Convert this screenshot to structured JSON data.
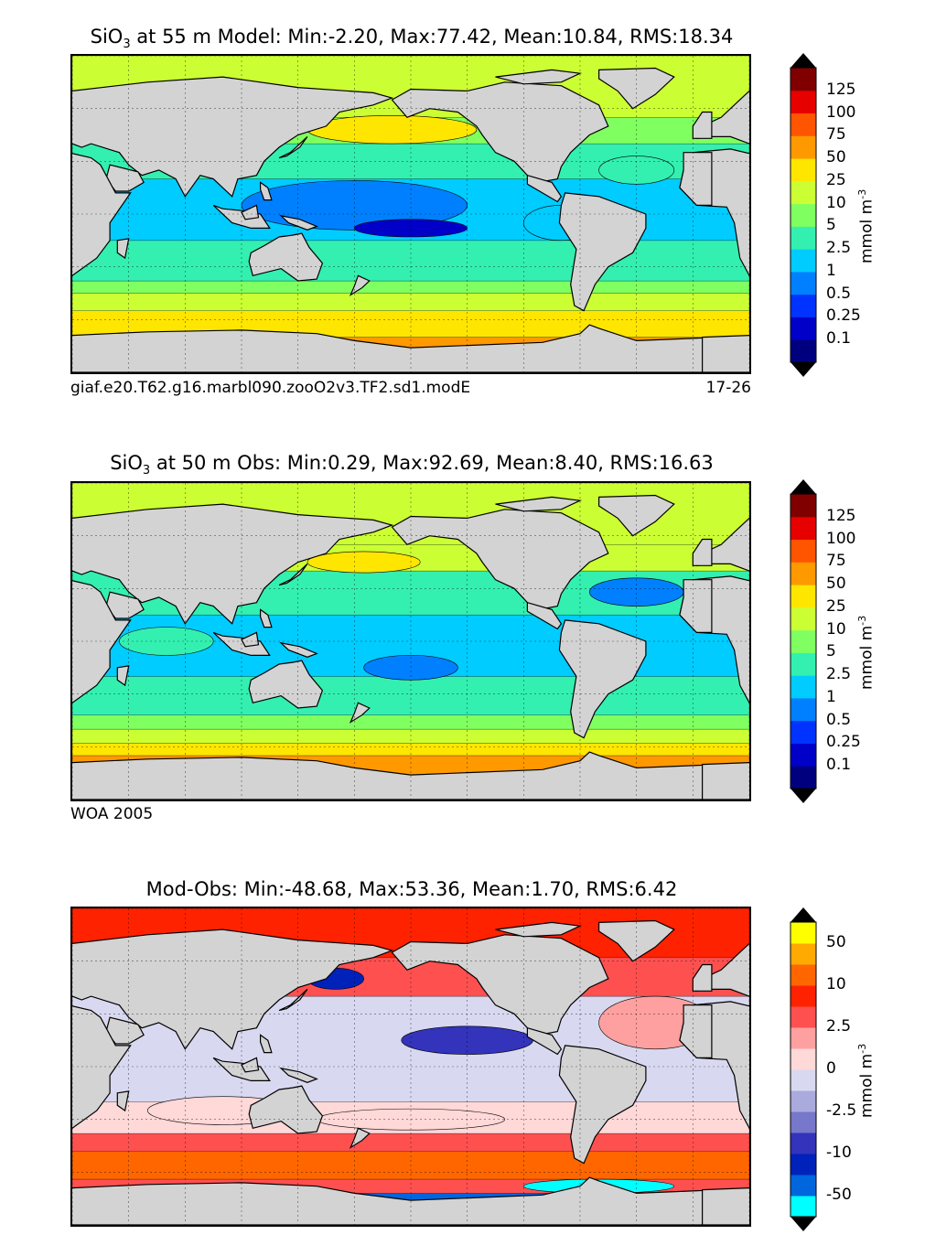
{
  "chart_data": [
    {
      "type": "heatmap",
      "title": "SiO3 at 55 m Model: Min:-2.20, Max:77.42, Mean:10.84, RMS:18.34",
      "title_parts": {
        "pre": "SiO",
        "sub": "3",
        "post": " at 55 m Model: Min:-2.20, Max:77.42, Mean:10.84, RMS:18.34"
      },
      "stats": {
        "depth_m": 55,
        "source": "Model",
        "min": -2.2,
        "max": 77.42,
        "mean": 10.84,
        "rms": 18.34
      },
      "caption_left": "giaf.e20.T62.g16.marbl090.zooO2v3.TF2.sd1.modE",
      "caption_right": "17-26",
      "colorbar": {
        "units": "mmol m",
        "units_exp": "-3",
        "levels": [
          "0.1",
          "0.25",
          "0.5",
          "1",
          "2.5",
          "5",
          "10",
          "25",
          "50",
          "75",
          "100",
          "125"
        ],
        "colors": [
          "#00007f",
          "#0000c8",
          "#0033ff",
          "#0080ff",
          "#00ccff",
          "#33f0b0",
          "#80ff60",
          "#ccff33",
          "#ffe600",
          "#ff9900",
          "#ff5500",
          "#e60000",
          "#800000"
        ],
        "extend": "both"
      },
      "field": {
        "bands": [
          {
            "lat_from": -90,
            "lat_to": -70,
            "level_index": 9
          },
          {
            "lat_from": -70,
            "lat_to": -55,
            "level_index": 8
          },
          {
            "lat_from": -55,
            "lat_to": -45,
            "level_index": 7
          },
          {
            "lat_from": -45,
            "lat_to": -38,
            "level_index": 6
          },
          {
            "lat_from": -38,
            "lat_to": -15,
            "level_index": 5
          },
          {
            "lat_from": -15,
            "lat_to": 20,
            "level_index": 4
          },
          {
            "lat_from": 20,
            "lat_to": 40,
            "level_index": 5
          },
          {
            "lat_from": 40,
            "lat_to": 55,
            "level_index": 6
          },
          {
            "lat_from": 55,
            "lat_to": 90,
            "level_index": 7
          }
        ],
        "blobs": [
          {
            "lon": 170,
            "lat": 5,
            "rlon": 60,
            "rlat": 14,
            "level_index": 3
          },
          {
            "lon": 200,
            "lat": -8,
            "rlon": 30,
            "rlat": 5,
            "level_index": 1
          },
          {
            "lon": 190,
            "lat": 48,
            "rlon": 45,
            "rlat": 8,
            "level_index": 8
          },
          {
            "lon": 130,
            "lat": 48,
            "rlon": 8,
            "rlat": 6,
            "level_index": 9
          },
          {
            "lon": 280,
            "lat": -5,
            "rlon": 20,
            "rlat": 10,
            "level_index": 4
          },
          {
            "lon": 320,
            "lat": 25,
            "rlon": 20,
            "rlat": 8,
            "level_index": 5
          }
        ]
      }
    },
    {
      "type": "heatmap",
      "title": "SiO3 at 50 m Obs: Min:0.29, Max:92.69, Mean:8.40, RMS:16.63",
      "title_parts": {
        "pre": "SiO",
        "sub": "3",
        "post": " at 50 m Obs: Min:0.29, Max:92.69, Mean:8.40, RMS:16.63"
      },
      "stats": {
        "depth_m": 50,
        "source": "Obs",
        "min": 0.29,
        "max": 92.69,
        "mean": 8.4,
        "rms": 16.63
      },
      "caption_left": "WOA 2005",
      "caption_right": "",
      "colorbar": {
        "units": "mmol m",
        "units_exp": "-3",
        "levels": [
          "0.1",
          "0.25",
          "0.5",
          "1",
          "2.5",
          "5",
          "10",
          "25",
          "50",
          "75",
          "100",
          "125"
        ],
        "colors": [
          "#00007f",
          "#0000c8",
          "#0033ff",
          "#0080ff",
          "#00ccff",
          "#33f0b0",
          "#80ff60",
          "#ccff33",
          "#ffe600",
          "#ff9900",
          "#ff5500",
          "#e60000",
          "#800000"
        ],
        "extend": "both"
      },
      "field": {
        "bands": [
          {
            "lat_from": -90,
            "lat_to": -65,
            "level_index": 9
          },
          {
            "lat_from": -65,
            "lat_to": -58,
            "level_index": 8
          },
          {
            "lat_from": -58,
            "lat_to": -50,
            "level_index": 7
          },
          {
            "lat_from": -50,
            "lat_to": -42,
            "level_index": 6
          },
          {
            "lat_from": -42,
            "lat_to": -20,
            "level_index": 5
          },
          {
            "lat_from": -20,
            "lat_to": 15,
            "level_index": 4
          },
          {
            "lat_from": 15,
            "lat_to": 40,
            "level_index": 5
          },
          {
            "lat_from": 40,
            "lat_to": 55,
            "level_index": 7
          },
          {
            "lat_from": 55,
            "lat_to": 90,
            "level_index": 7
          }
        ],
        "blobs": [
          {
            "lon": 200,
            "lat": -15,
            "rlon": 25,
            "rlat": 7,
            "level_index": 3
          },
          {
            "lon": 320,
            "lat": 28,
            "rlon": 25,
            "rlat": 8,
            "level_index": 3
          },
          {
            "lon": 175,
            "lat": 45,
            "rlon": 30,
            "rlat": 6,
            "level_index": 8
          },
          {
            "lon": 70,
            "lat": 0,
            "rlon": 25,
            "rlat": 8,
            "level_index": 5
          }
        ]
      }
    },
    {
      "type": "heatmap",
      "title": "Mod-Obs: Min:-48.68, Max:53.36, Mean:1.70, RMS:6.42",
      "title_parts": {
        "pre": "Mod-Obs: Min:-48.68, Max:53.36, Mean:1.70, RMS:6.42",
        "sub": "",
        "post": ""
      },
      "stats": {
        "source": "Mod-Obs",
        "min": -48.68,
        "max": 53.36,
        "mean": 1.7,
        "rms": 6.42
      },
      "caption_left": "",
      "caption_right": "",
      "colorbar": {
        "units": "mmol m",
        "units_exp": "-3",
        "levels": [
          "-50",
          "",
          "-10",
          "",
          "-2.5",
          "",
          "0",
          "",
          "2.5",
          "",
          "10",
          "",
          "50"
        ],
        "colors": [
          "#00ffff",
          "#0066dd",
          "#0022bb",
          "#3333bb",
          "#7777cc",
          "#aaaadd",
          "#d8d8f0",
          "#ffd8d8",
          "#ffa0a0",
          "#ff5050",
          "#ff2200",
          "#ff6600",
          "#ffaa00",
          "#ffff00"
        ],
        "extend": "both"
      },
      "field": {
        "bands": [
          {
            "lat_from": -90,
            "lat_to": -72,
            "level_index": 1
          },
          {
            "lat_from": -72,
            "lat_to": -64,
            "level_index": 9
          },
          {
            "lat_from": -64,
            "lat_to": -48,
            "level_index": 11
          },
          {
            "lat_from": -48,
            "lat_to": -38,
            "level_index": 9
          },
          {
            "lat_from": -38,
            "lat_to": -20,
            "level_index": 7
          },
          {
            "lat_from": -20,
            "lat_to": 40,
            "level_index": 6
          },
          {
            "lat_from": 40,
            "lat_to": 62,
            "level_index": 9
          },
          {
            "lat_from": 62,
            "lat_to": 90,
            "level_index": 10
          }
        ],
        "blobs": [
          {
            "lon": 230,
            "lat": 15,
            "rlon": 35,
            "rlat": 8,
            "level_index": 3
          },
          {
            "lon": 330,
            "lat": 25,
            "rlon": 30,
            "rlat": 15,
            "level_index": 8
          },
          {
            "lon": 100,
            "lat": -25,
            "rlon": 40,
            "rlat": 8,
            "level_index": 7
          },
          {
            "lon": 200,
            "lat": -30,
            "rlon": 50,
            "rlat": 6,
            "level_index": 7
          },
          {
            "lon": 160,
            "lat": 50,
            "rlon": 15,
            "rlat": 6,
            "level_index": 2
          },
          {
            "lon": 300,
            "lat": -68,
            "rlon": 40,
            "rlat": 4,
            "level_index": 0
          }
        ]
      }
    }
  ],
  "land": [
    {
      "name": "north-america",
      "pts": [
        [
          190,
          65
        ],
        [
          200,
          71
        ],
        [
          230,
          70
        ],
        [
          250,
          75
        ],
        [
          280,
          73
        ],
        [
          300,
          62
        ],
        [
          305,
          50
        ],
        [
          295,
          45
        ],
        [
          285,
          35
        ],
        [
          280,
          27
        ],
        [
          278,
          20
        ],
        [
          268,
          18
        ],
        [
          262,
          22
        ],
        [
          255,
          30
        ],
        [
          245,
          35
        ],
        [
          238,
          45
        ],
        [
          235,
          50
        ],
        [
          225,
          58
        ],
        [
          210,
          60
        ],
        [
          198,
          55
        ]
      ]
    },
    {
      "name": "greenland",
      "pts": [
        [
          300,
          82
        ],
        [
          330,
          83
        ],
        [
          340,
          78
        ],
        [
          330,
          68
        ],
        [
          318,
          60
        ],
        [
          310,
          70
        ],
        [
          300,
          77
        ]
      ]
    },
    {
      "name": "central-america",
      "pts": [
        [
          262,
          22
        ],
        [
          275,
          18
        ],
        [
          280,
          10
        ],
        [
          278,
          7
        ],
        [
          270,
          12
        ],
        [
          262,
          17
        ]
      ]
    },
    {
      "name": "south-america",
      "pts": [
        [
          282,
          12
        ],
        [
          300,
          10
        ],
        [
          325,
          0
        ],
        [
          325,
          -8
        ],
        [
          318,
          -22
        ],
        [
          305,
          -30
        ],
        [
          298,
          -40
        ],
        [
          292,
          -55
        ],
        [
          287,
          -52
        ],
        [
          285,
          -40
        ],
        [
          288,
          -20
        ],
        [
          279,
          -5
        ],
        [
          280,
          5
        ]
      ]
    },
    {
      "name": "eurasia",
      "pts": [
        [
          20,
          70
        ],
        [
          60,
          75
        ],
        [
          100,
          78
        ],
        [
          140,
          72
        ],
        [
          180,
          69
        ],
        [
          190,
          66
        ],
        [
          180,
          62
        ],
        [
          162,
          58
        ],
        [
          155,
          50
        ],
        [
          140,
          45
        ],
        [
          130,
          38
        ],
        [
          122,
          30
        ],
        [
          118,
          22
        ],
        [
          108,
          20
        ],
        [
          105,
          10
        ],
        [
          100,
          15
        ],
        [
          95,
          20
        ],
        [
          88,
          22
        ],
        [
          80,
          10
        ],
        [
          75,
          20
        ],
        [
          66,
          25
        ],
        [
          57,
          22
        ],
        [
          50,
          28
        ],
        [
          45,
          35
        ],
        [
          30,
          40
        ],
        [
          25,
          38
        ],
        [
          20,
          40
        ],
        [
          10,
          44
        ],
        [
          0,
          44
        ],
        [
          -8,
          43
        ],
        [
          -5,
          50
        ],
        [
          5,
          55
        ],
        [
          10,
          60
        ]
      ]
    },
    {
      "name": "europe-west",
      "pts": [
        [
          350,
          43
        ],
        [
          360,
          43
        ],
        [
          360,
          58
        ],
        [
          355,
          58
        ],
        [
          350,
          50
        ]
      ]
    },
    {
      "name": "arabia",
      "pts": [
        [
          40,
          28
        ],
        [
          55,
          24
        ],
        [
          58,
          18
        ],
        [
          50,
          13
        ],
        [
          43,
          13
        ],
        [
          38,
          20
        ]
      ]
    },
    {
      "name": "africa",
      "pts": [
        [
          -10,
          35
        ],
        [
          10,
          37
        ],
        [
          30,
          32
        ],
        [
          35,
          28
        ],
        [
          43,
          12
        ],
        [
          51,
          12
        ],
        [
          40,
          -5
        ],
        [
          40,
          -15
        ],
        [
          33,
          -25
        ],
        [
          20,
          -35
        ],
        [
          15,
          -25
        ],
        [
          12,
          -5
        ],
        [
          8,
          4
        ],
        [
          -8,
          5
        ],
        [
          -17,
          15
        ],
        [
          -15,
          25
        ]
      ]
    },
    {
      "name": "africa-west",
      "pts": [
        [
          345,
          35
        ],
        [
          360,
          35
        ],
        [
          360,
          5
        ],
        [
          352,
          5
        ],
        [
          343,
          15
        ],
        [
          345,
          25
        ]
      ]
    },
    {
      "name": "madagascar",
      "pts": [
        [
          44,
          -15
        ],
        [
          50,
          -14
        ],
        [
          48,
          -25
        ],
        [
          44,
          -22
        ]
      ]
    },
    {
      "name": "indonesia",
      "pts": [
        [
          95,
          5
        ],
        [
          105,
          -5
        ],
        [
          115,
          -8
        ],
        [
          125,
          -8
        ],
        [
          120,
          0
        ],
        [
          110,
          2
        ],
        [
          100,
          3
        ]
      ]
    },
    {
      "name": "borneo",
      "pts": [
        [
          110,
          1
        ],
        [
          118,
          5
        ],
        [
          119,
          -2
        ],
        [
          112,
          -3
        ]
      ]
    },
    {
      "name": "new-guinea",
      "pts": [
        [
          131,
          -1
        ],
        [
          141,
          -3
        ],
        [
          150,
          -7
        ],
        [
          145,
          -9
        ],
        [
          135,
          -5
        ]
      ]
    },
    {
      "name": "philippines",
      "pts": [
        [
          120,
          18
        ],
        [
          124,
          15
        ],
        [
          126,
          8
        ],
        [
          122,
          8
        ],
        [
          120,
          14
        ]
      ]
    },
    {
      "name": "japan",
      "pts": [
        [
          130,
          32
        ],
        [
          136,
          35
        ],
        [
          142,
          41
        ],
        [
          145,
          44
        ],
        [
          141,
          38
        ],
        [
          134,
          33
        ]
      ]
    },
    {
      "name": "australia",
      "pts": [
        [
          115,
          -22
        ],
        [
          122,
          -18
        ],
        [
          130,
          -13
        ],
        [
          137,
          -12
        ],
        [
          142,
          -11
        ],
        [
          146,
          -19
        ],
        [
          153,
          -28
        ],
        [
          150,
          -37
        ],
        [
          140,
          -38
        ],
        [
          131,
          -31
        ],
        [
          116,
          -35
        ],
        [
          114,
          -27
        ]
      ]
    },
    {
      "name": "new-zealand",
      "pts": [
        [
          172,
          -35
        ],
        [
          178,
          -38
        ],
        [
          174,
          -42
        ],
        [
          168,
          -46
        ],
        [
          170,
          -41
        ]
      ]
    },
    {
      "name": "antarctica",
      "pts": [
        [
          -5,
          -90
        ],
        [
          365,
          -90
        ],
        [
          365,
          -70
        ],
        [
          320,
          -72
        ],
        [
          300,
          -65
        ],
        [
          295,
          -63
        ],
        [
          290,
          -68
        ],
        [
          270,
          -73
        ],
        [
          200,
          -76
        ],
        [
          170,
          -72
        ],
        [
          150,
          -68
        ],
        [
          110,
          -66
        ],
        [
          60,
          -67
        ],
        [
          20,
          -69
        ],
        [
          -5,
          -70
        ]
      ]
    },
    {
      "name": "arctic-islands",
      "pts": [
        [
          245,
          78
        ],
        [
          275,
          82
        ],
        [
          290,
          80
        ],
        [
          280,
          75
        ],
        [
          260,
          74
        ]
      ]
    }
  ]
}
